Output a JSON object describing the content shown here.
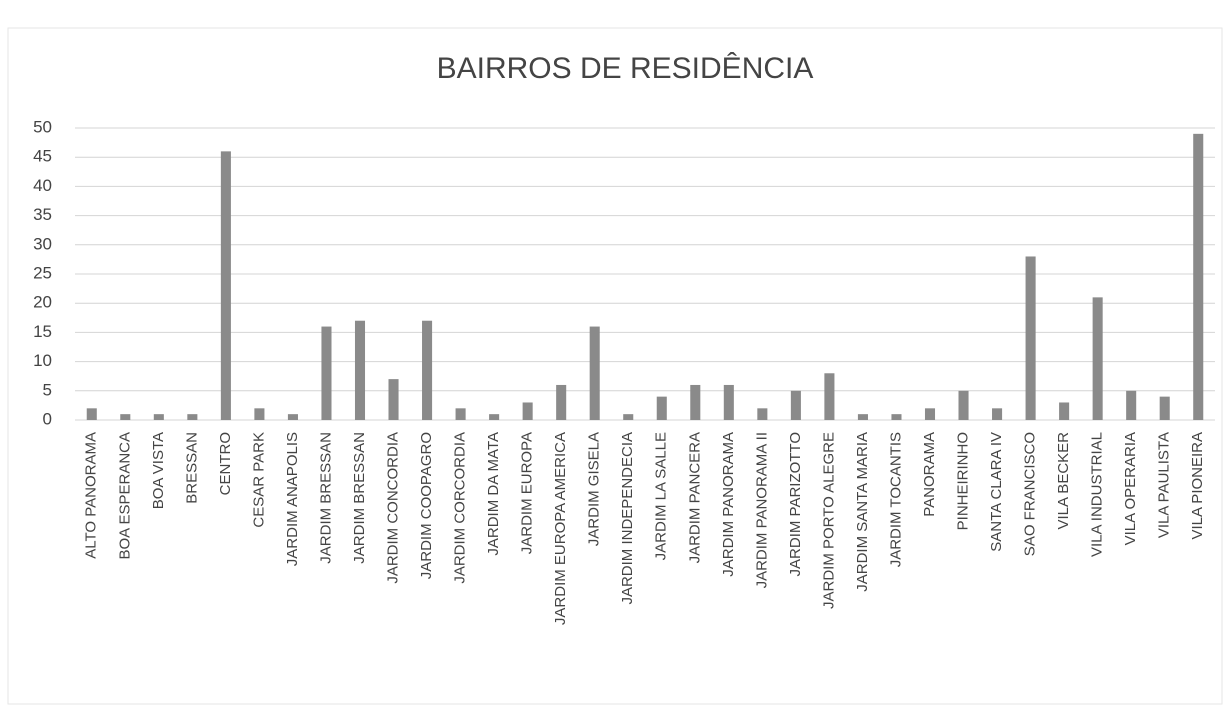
{
  "chart_data": {
    "type": "bar",
    "title": "BAIRROS DE RESIDÊNCIA",
    "categories": [
      "ALTO PANORAMA",
      "BOA ESPERANCA",
      "BOA VISTA",
      "BRESSAN",
      "CENTRO",
      "CESAR PARK",
      "JARDIM ANAPOLIS",
      "JARDIM BRESSAN",
      "JARDIM BRESSAN",
      "JARDIM CONCORDIA",
      "JARDIM COOPAGRO",
      "JARDIM CORCORDIA",
      "JARDIM DA MATA",
      "JARDIM EUROPA",
      "JARDIM EUROPA AMERICA",
      "JARDIM GISELA",
      "JARDIM INDEPENDECIA",
      "JARDIM LA SALLE",
      "JARDIM PANCERA",
      "JARDIM PANORAMA",
      "JARDIM PANORAMA II",
      "JARDIM PARIZOTTO",
      "JARDIM PORTO ALEGRE",
      "JARDIM SANTA MARIA",
      "JARDIM TOCANTIS",
      "PANORAMA",
      "PINHEIRINHO",
      "SANTA CLARA IV",
      "SAO FRANCISCO",
      "VILA BECKER",
      "VILA INDUSTRIAL",
      "VILA OPERARIA",
      "VILA PAULISTA",
      "VILA PIONEIRA"
    ],
    "values": [
      2,
      1,
      1,
      1,
      46,
      2,
      1,
      16,
      17,
      7,
      17,
      2,
      1,
      3,
      6,
      16,
      1,
      4,
      6,
      6,
      2,
      5,
      8,
      1,
      1,
      2,
      5,
      2,
      28,
      3,
      21,
      5,
      4,
      49
    ],
    "color": "#8a8a8a",
    "ylim": [
      0,
      50
    ],
    "yticks": [
      0,
      5,
      10,
      15,
      20,
      25,
      30,
      35,
      40,
      45,
      50
    ],
    "grid": true
  }
}
